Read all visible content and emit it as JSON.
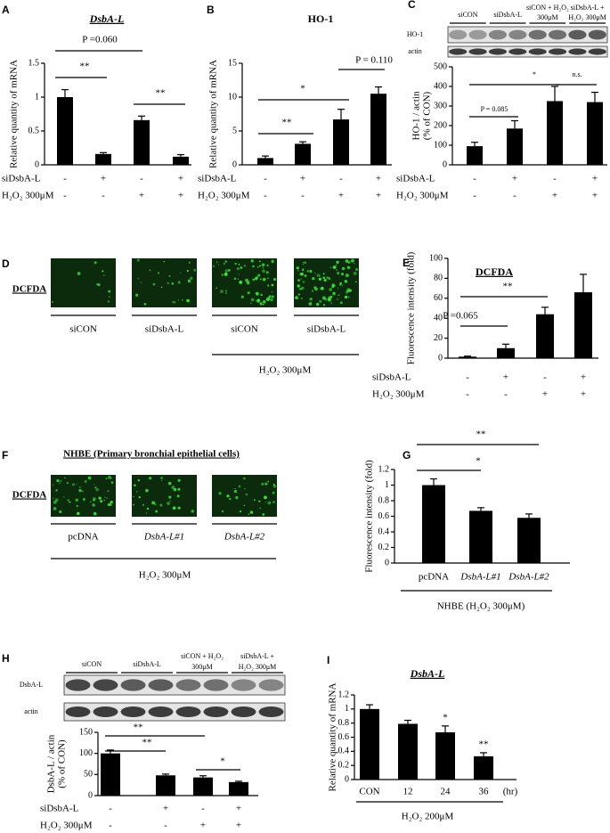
{
  "chart_data": [
    {
      "type": "bar",
      "panel": "A",
      "title": "DsbA-L",
      "ylabel": "Relative quantity of mRNA",
      "values": [
        1.0,
        0.16,
        0.66,
        0.12
      ],
      "errors": [
        0.11,
        0.02,
        0.06,
        0.03
      ],
      "color": "#000000",
      "ylim": [
        0,
        1.5
      ],
      "yticks": [
        0,
        0.5,
        1,
        1.5
      ],
      "rows": [
        {
          "label": "siDsbA-L",
          "signs": [
            "-",
            "+",
            "-",
            "+"
          ]
        },
        {
          "label": "H₂O₂ 300μM",
          "signs": [
            "-",
            "-",
            "+",
            "+"
          ]
        }
      ],
      "annotations": [
        "P =0.060",
        "**",
        "**"
      ]
    },
    {
      "type": "bar",
      "panel": "B",
      "title": "HO-1",
      "ylabel": "Relative quantity of mRNA",
      "values": [
        1.0,
        3.1,
        6.7,
        10.5
      ],
      "errors": [
        0.3,
        0.3,
        1.5,
        1.0
      ],
      "color": "#000000",
      "ylim": [
        0,
        15
      ],
      "yticks": [
        0,
        5,
        10,
        15
      ],
      "rows": [
        {
          "label": "siDsbA-L",
          "signs": [
            "-",
            "+",
            "-",
            "+"
          ]
        },
        {
          "label": "H₂O₂ 300μM",
          "signs": [
            "-",
            "-",
            "+",
            "+"
          ]
        }
      ],
      "annotations": [
        "**",
        "*",
        "P = 0.110"
      ]
    },
    {
      "type": "bar",
      "panel": "C",
      "blot": {
        "lanes": [
          [
            "siCON"
          ],
          [
            "siDsbA-L"
          ],
          [
            "siCON + H₂O₂",
            "300μM"
          ],
          [
            "siDsbA-L +",
            "H₂O₂ 300μM"
          ]
        ],
        "bands": [
          "HO-1",
          "actin"
        ]
      },
      "ylabel": [
        "HO-1 / actin",
        "(% of CON)"
      ],
      "values": [
        95,
        185,
        325,
        320
      ],
      "errors": [
        20,
        40,
        75,
        50
      ],
      "color": "#000000",
      "ylim": [
        0,
        500
      ],
      "yticks": [
        0,
        100,
        200,
        300,
        400,
        500
      ],
      "rows": [
        {
          "label": "siDsbA-L",
          "signs": [
            "-",
            "+",
            "-",
            "+"
          ]
        },
        {
          "label": "H₂O₂ 300μM",
          "signs": [
            "-",
            "-",
            "+",
            "+"
          ]
        }
      ],
      "annotations": [
        "P = 0.085",
        "*",
        "n.s."
      ]
    },
    {
      "type": "bar",
      "panel": "E",
      "title": "DCFDA",
      "ylabel": "Fluorescence intensity (fold)",
      "values": [
        1.5,
        10,
        44,
        66
      ],
      "errors": [
        0.5,
        4,
        7,
        18
      ],
      "color": "#000000",
      "ylim": [
        0,
        100
      ],
      "yticks": [
        0,
        20,
        40,
        60,
        80,
        100
      ],
      "rows": [
        {
          "label": "siDsbA-L",
          "signs": [
            "-",
            "+",
            "-",
            "+"
          ]
        },
        {
          "label": "H₂O₂ 300μM",
          "signs": [
            "-",
            "-",
            "+",
            "+"
          ]
        }
      ],
      "annotations": [
        "P =0.065",
        "**"
      ]
    },
    {
      "type": "bar",
      "panel": "G",
      "ylabel": "Fluorescence intensity (fold)",
      "categories": [
        "pcDNA",
        "DsbA-L#1",
        "DsbA-L#2"
      ],
      "values": [
        1.0,
        0.67,
        0.58
      ],
      "errors": [
        0.08,
        0.04,
        0.05
      ],
      "color": "#000000",
      "ylim": [
        0,
        1.2
      ],
      "yticks": [
        0,
        0.2,
        0.4,
        0.6,
        0.8,
        1,
        1.2
      ],
      "xlabel": "NHBE (H₂O₂ 300μM)",
      "annotations": [
        "*",
        "**"
      ]
    },
    {
      "type": "bar",
      "panel": "H",
      "blot": {
        "lanes": [
          [
            "siCON"
          ],
          [
            "siDsbA-L"
          ],
          [
            "siCON + H₂O₂",
            "300μM"
          ],
          [
            "siDsbA-L +",
            "H₂O₂ 300μM"
          ]
        ],
        "bands": [
          "DsbA-L",
          "actin"
        ]
      },
      "ylabel": [
        "DsbA-L / actin",
        "(% of CON)"
      ],
      "values": [
        100,
        48,
        43,
        32
      ],
      "errors": [
        8,
        3,
        4,
        2
      ],
      "color": "#000000",
      "ylim": [
        0,
        150
      ],
      "yticks": [
        0,
        50,
        100,
        150
      ],
      "rows": [
        {
          "label": "siDsbA-L",
          "signs": [
            "-",
            "+",
            "-",
            "+"
          ]
        },
        {
          "label": "H₂O₂ 300μM",
          "signs": [
            "-",
            "-",
            "+",
            "+"
          ]
        }
      ],
      "annotations": [
        "**",
        "**",
        "*"
      ]
    },
    {
      "type": "bar",
      "panel": "I",
      "title": "DsbA-L",
      "ylabel": "Relative quantity of mRNA",
      "categories": [
        "CON",
        "12",
        "24",
        "36"
      ],
      "xunit": "(hr)",
      "values": [
        1.0,
        0.79,
        0.67,
        0.33
      ],
      "errors": [
        0.06,
        0.05,
        0.09,
        0.05
      ],
      "color": "#000000",
      "ylim": [
        0,
        1.2
      ],
      "yticks": [
        0,
        0.2,
        0.4,
        0.6,
        0.8,
        1,
        1.2
      ],
      "xlabel": "H₂O₂ 200μM",
      "annotations": [
        "*",
        "**"
      ]
    }
  ],
  "image_panels": [
    {
      "letter": "D",
      "stain": "DCFDA",
      "labels": [
        "siCON",
        "siDsbA-L",
        "siCON",
        "siDsbA-L"
      ],
      "treatment": "H₂O₂ 300μM"
    },
    {
      "letter": "F",
      "title": "NHBE (Primary bronchial epithelial cells)",
      "stain": "DCFDA",
      "labels": [
        "pcDNA",
        "DsbA-L#1",
        "DsbA-L#2"
      ],
      "treatment": "H₂O₂ 300μM"
    }
  ]
}
